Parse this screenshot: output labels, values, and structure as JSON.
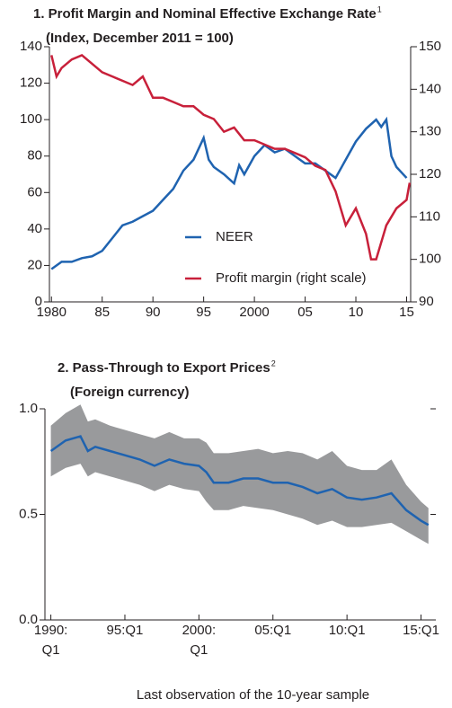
{
  "chart_data": [
    {
      "type": "line",
      "title": "1. Profit Margin and Nominal Effective Exchange Rate",
      "title_note": "1",
      "subtitle": "(Index, December 2011 = 100)",
      "xlim": [
        1979.8,
        2015.4
      ],
      "xticks": [
        1980,
        {
          "value": 1985,
          "label": "85"
        },
        {
          "value": 1990,
          "label": "90"
        },
        {
          "value": 1995,
          "label": "95"
        },
        2000,
        {
          "value": 2005,
          "label": "05"
        },
        {
          "value": 2010,
          "label": "10"
        },
        {
          "value": 2015,
          "label": "15"
        }
      ],
      "ylim": [
        0,
        140
      ],
      "yticks": [
        0,
        20,
        40,
        60,
        80,
        100,
        120,
        140
      ],
      "y2lim": [
        90,
        150
      ],
      "y2ticks": [
        90,
        100,
        110,
        120,
        130,
        140,
        150
      ],
      "legend": "lower center",
      "series": [
        {
          "name": "NEER",
          "color": "#1f63b0",
          "x": [
            1980,
            1981,
            1982,
            1983,
            1984,
            1985,
            1986,
            1987,
            1988,
            1989,
            1990,
            1991,
            1992,
            1993,
            1994,
            1995,
            1995.5,
            1996,
            1997,
            1998,
            1998.5,
            1999,
            2000,
            2001,
            2002,
            2003,
            2004,
            2005,
            2006,
            2007,
            2008,
            2009,
            2010,
            2011,
            2012,
            2012.5,
            2013,
            2013.5,
            2014,
            2015
          ],
          "values": [
            18,
            22,
            22,
            24,
            25,
            28,
            35,
            42,
            44,
            47,
            50,
            56,
            62,
            72,
            78,
            90,
            78,
            74,
            70,
            65,
            75,
            70,
            80,
            86,
            82,
            84,
            80,
            76,
            76,
            72,
            68,
            78,
            88,
            95,
            100,
            96,
            100,
            80,
            74,
            68
          ]
        },
        {
          "name": "Profit margin (right scale)",
          "color": "#c8203a",
          "axis": "y2",
          "x": [
            1980,
            1980.5,
            1981,
            1982,
            1983,
            1984,
            1985,
            1986,
            1987,
            1988,
            1989,
            1990,
            1991,
            1992,
            1993,
            1994,
            1995,
            1996,
            1997,
            1998,
            1999,
            2000,
            2001,
            2002,
            2003,
            2004,
            2005,
            2006,
            2007,
            2008,
            2009,
            2010,
            2011,
            2011.5,
            2012,
            2013,
            2014,
            2015,
            2015.3
          ],
          "values": [
            148,
            143,
            145,
            147,
            148,
            146,
            144,
            143,
            142,
            141,
            143,
            138,
            138,
            137,
            136,
            136,
            134,
            133,
            130,
            131,
            128,
            128,
            127,
            126,
            126,
            125,
            124,
            122,
            121,
            116,
            108,
            112,
            106,
            100,
            100,
            108,
            112,
            114,
            118
          ]
        }
      ]
    },
    {
      "type": "band-line",
      "title": "2. Pass-Through to Export Prices",
      "title_note": "2",
      "subtitle": "(Foreign currency)",
      "xlabel": "Last observation of the 10-year sample",
      "xlim": [
        1989.6,
        2016
      ],
      "xticks": [
        {
          "value": 1990,
          "label": "1990:\nQ1"
        },
        {
          "value": 1995,
          "label": "95:Q1"
        },
        {
          "value": 2000,
          "label": "2000:\nQ1"
        },
        {
          "value": 2005,
          "label": "05:Q1"
        },
        {
          "value": 2010,
          "label": "10:Q1"
        },
        {
          "value": 2015,
          "label": "15:Q1"
        }
      ],
      "ylim": [
        0,
        1
      ],
      "yticks": [
        {
          "value": 0,
          "label": "0.0"
        },
        0.5,
        {
          "value": 1,
          "label": "1.0"
        }
      ],
      "x": [
        1990,
        1991,
        1992,
        1992.5,
        1993,
        1994,
        1995,
        1996,
        1997,
        1998,
        1999,
        2000,
        2000.5,
        2001,
        2002,
        2003,
        2004,
        2005,
        2006,
        2007,
        2008,
        2009,
        2010,
        2011,
        2012,
        2013,
        2014,
        2015,
        2015.5
      ],
      "band": {
        "color": "#999a9c",
        "lower": [
          0.68,
          0.72,
          0.74,
          0.68,
          0.7,
          0.68,
          0.66,
          0.64,
          0.61,
          0.64,
          0.62,
          0.61,
          0.56,
          0.52,
          0.52,
          0.54,
          0.53,
          0.52,
          0.5,
          0.48,
          0.45,
          0.47,
          0.44,
          0.44,
          0.45,
          0.46,
          0.42,
          0.38,
          0.36
        ],
        "upper": [
          0.92,
          0.98,
          1.02,
          0.94,
          0.95,
          0.92,
          0.9,
          0.88,
          0.86,
          0.89,
          0.86,
          0.86,
          0.84,
          0.79,
          0.79,
          0.8,
          0.81,
          0.79,
          0.8,
          0.79,
          0.76,
          0.8,
          0.73,
          0.71,
          0.71,
          0.76,
          0.64,
          0.56,
          0.53
        ]
      },
      "series": [
        {
          "color": "#1f63b0",
          "values": [
            0.8,
            0.85,
            0.87,
            0.8,
            0.82,
            0.8,
            0.78,
            0.76,
            0.73,
            0.76,
            0.74,
            0.73,
            0.7,
            0.65,
            0.65,
            0.67,
            0.67,
            0.65,
            0.65,
            0.63,
            0.6,
            0.62,
            0.58,
            0.57,
            0.58,
            0.6,
            0.52,
            0.47,
            0.45
          ]
        }
      ]
    }
  ]
}
